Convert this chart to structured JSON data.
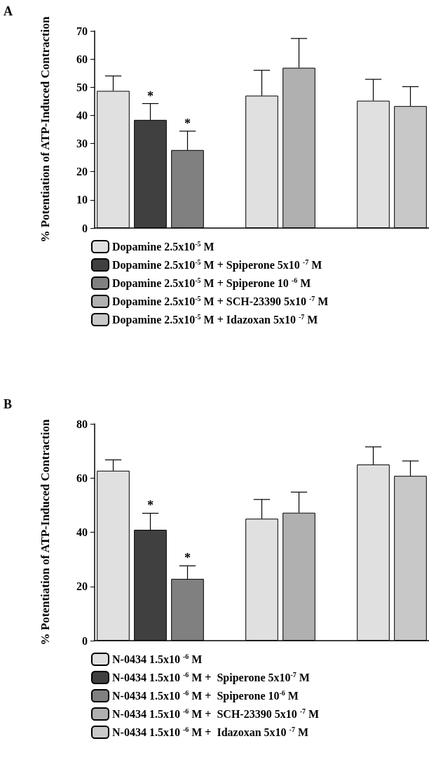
{
  "chart_data": [
    {
      "type": "bar",
      "title": "A",
      "ylabel": "% Potentiation of ATP-Induced Contraction",
      "categories": [
        null,
        null,
        null,
        null,
        null,
        null,
        null,
        null,
        null
      ],
      "stacked": true,
      "legend": "bottom",
      "tick_labels": "y",
      "ylim": [
        0,
        70
      ],
      "yticks": [
        0,
        10,
        20,
        30,
        40,
        50,
        60,
        70
      ],
      "series": [
        {
          "name": "Dopamine 2.5x10$^{-5}$ M",
          "color": "#e0e0e0",
          "values": [
            48.7,
            null,
            null,
            null,
            47.0,
            null,
            null,
            45.2,
            null
          ],
          "errors": [
            5.3,
            null,
            null,
            null,
            9.0,
            null,
            null,
            7.6,
            null
          ]
        },
        {
          "name": "Dopamine 2.5x10$^{-5}$ M + Spiperone 5x10 $^{-7}$ M",
          "color": "#404040",
          "values": [
            null,
            38.4,
            null,
            null,
            null,
            null,
            null,
            null,
            null
          ],
          "errors": [
            null,
            5.8,
            null,
            null,
            null,
            null,
            null,
            null,
            null
          ],
          "value_labels": [
            null,
            "*",
            null,
            null,
            null,
            null,
            null,
            null,
            null
          ]
        },
        {
          "name": "Dopamine 2.5x10$^{-5}$ M + Spiperone 10 $^{-6}$ M",
          "color": "#808080",
          "values": [
            null,
            null,
            27.7,
            null,
            null,
            null,
            null,
            null,
            null
          ],
          "errors": [
            null,
            null,
            6.7,
            null,
            null,
            null,
            null,
            null,
            null
          ],
          "value_labels": [
            null,
            null,
            "*",
            null,
            null,
            null,
            null,
            null,
            null
          ]
        },
        {
          "name": "Dopamine 2.5x10$^{-5}$ M + SCH-23390 5x10 $^{-7}$ M",
          "color": "#b0b0b0",
          "values": [
            null,
            null,
            null,
            null,
            null,
            56.9,
            null,
            null,
            null
          ],
          "errors": [
            null,
            null,
            null,
            null,
            null,
            10.4,
            null,
            null,
            null
          ]
        },
        {
          "name": "Dopamine 2.5x10$^{-5}$ M + Idazoxan 5x10 $^{-7}$ M",
          "color": "#c8c8c8",
          "values": [
            null,
            null,
            null,
            null,
            null,
            null,
            null,
            null,
            43.3
          ],
          "errors": [
            null,
            null,
            null,
            null,
            null,
            null,
            null,
            null,
            6.9
          ]
        }
      ]
    },
    {
      "type": "bar",
      "title": "B",
      "ylabel": "% Potentiation of ATP-Induced Contraction",
      "categories": [
        null,
        null,
        null,
        null,
        null,
        null,
        null,
        null,
        null
      ],
      "stacked": true,
      "legend": "bottom",
      "tick_labels": "y",
      "ylim": [
        0,
        80
      ],
      "yticks": [
        0,
        20,
        40,
        60,
        80
      ],
      "series": [
        {
          "name": "N-0434 1.5x10 $^{-6}$ M",
          "color": "#e0e0e0",
          "values": [
            62.7,
            null,
            null,
            null,
            45.0,
            null,
            null,
            65.0,
            null
          ],
          "errors": [
            4.0,
            null,
            null,
            null,
            7.1,
            null,
            null,
            6.5,
            null
          ]
        },
        {
          "name": "N-0434 1.5x10 $^{-6}$ M +  Spiperone 5x10$^{-7}$ M",
          "color": "#404040",
          "values": [
            null,
            40.9,
            null,
            null,
            null,
            null,
            null,
            null,
            null
          ],
          "errors": [
            null,
            6.1,
            null,
            null,
            null,
            null,
            null,
            null,
            null
          ],
          "value_labels": [
            null,
            "*",
            null,
            null,
            null,
            null,
            null,
            null,
            null
          ]
        },
        {
          "name": "N-0434 1.5x10 $^{-6}$ M +  Spiperone 10$^{-6}$ M",
          "color": "#808080",
          "values": [
            null,
            null,
            22.8,
            null,
            null,
            null,
            null,
            null,
            null
          ],
          "errors": [
            null,
            null,
            4.8,
            null,
            null,
            null,
            null,
            null,
            null
          ],
          "value_labels": [
            null,
            null,
            "*",
            null,
            null,
            null,
            null,
            null,
            null
          ]
        },
        {
          "name": "N-0434 1.5x10 $^{-6}$ M +  SCH-23390 5x10 $^{-7}$ M",
          "color": "#b0b0b0",
          "values": [
            null,
            null,
            null,
            null,
            null,
            47.2,
            null,
            null,
            null
          ],
          "errors": [
            null,
            null,
            null,
            null,
            null,
            7.6,
            null,
            null,
            null
          ]
        },
        {
          "name": "N-0434 1.5x10 $^{-6}$ M +  Idazoxan 5x10 $^{-7}$ M",
          "color": "#c8c8c8",
          "values": [
            null,
            null,
            null,
            null,
            null,
            null,
            null,
            null,
            60.8
          ],
          "errors": [
            null,
            null,
            null,
            null,
            null,
            null,
            null,
            null,
            5.5
          ]
        }
      ]
    }
  ]
}
